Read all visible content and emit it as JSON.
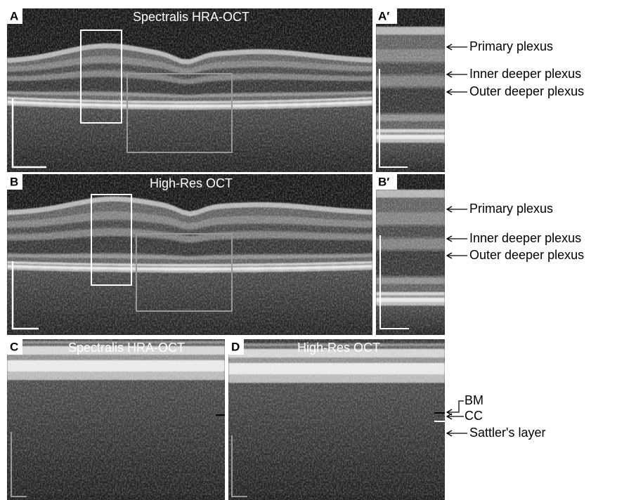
{
  "panels": [
    {
      "label": "A",
      "title": "Spectralis HRA-OCT"
    },
    {
      "label": "A′"
    },
    {
      "label": "B",
      "title": "High-Res OCT"
    },
    {
      "label": "B′"
    },
    {
      "label": "C",
      "title": "Spectralis HRA-OCT"
    },
    {
      "label": "D",
      "title": "High-Res OCT"
    }
  ],
  "annotations_a": [
    "Primary plexus",
    "Inner deeper plexus",
    "Outer deeper plexus"
  ],
  "annotations_b": [
    "Primary plexus",
    "Inner deeper plexus",
    "Outer deeper plexus"
  ],
  "annotations_cd": [
    "BM",
    "CC",
    "Sattler's layer"
  ]
}
